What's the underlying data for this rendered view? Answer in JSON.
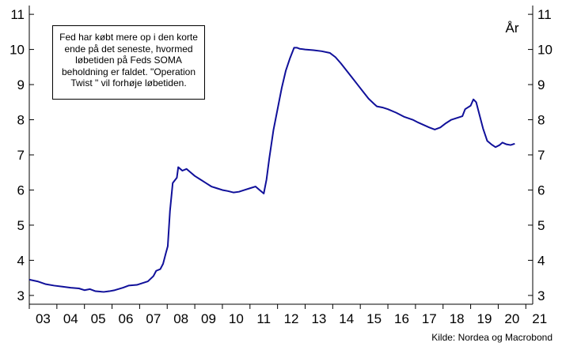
{
  "chart_data": {
    "type": "line",
    "title": "",
    "ylabel": "År",
    "xlabel": "",
    "x_tick_labels": [
      "03",
      "04",
      "05",
      "06",
      "07",
      "08",
      "09",
      "10",
      "11",
      "12",
      "13",
      "14",
      "15",
      "16",
      "17",
      "18",
      "19",
      "20",
      "21"
    ],
    "y_ticks": [
      3,
      4,
      5,
      6,
      7,
      8,
      9,
      10,
      11
    ],
    "ylim": [
      2.75,
      11.25
    ],
    "xlim": [
      2003.0,
      2021.25
    ],
    "grid": false,
    "legend": "none",
    "annotation": "Fed har købt mere op i den korte ende på det seneste, hvormed løbetiden på Feds SOMA beholdning er faldet. \"Operation Twist \" vil forhøje løbetiden.",
    "source": "Kilde: Nordea og Macrobond",
    "line_color": "#10109a",
    "series": [
      {
        "x": [
          2003.0,
          2003.3,
          2003.6,
          2003.9,
          2004.2,
          2004.5,
          2004.8,
          2005.0,
          2005.2,
          2005.4,
          2005.7,
          2005.9,
          2006.1,
          2006.4,
          2006.6,
          2006.9,
          2007.1,
          2007.3,
          2007.5,
          2007.6,
          2007.75,
          2007.85,
          2007.95,
          2008.02,
          2008.1,
          2008.2,
          2008.35,
          2008.4,
          2008.55,
          2008.7,
          2008.85,
          2009.0,
          2009.2,
          2009.4,
          2009.6,
          2009.8,
          2010.0,
          2010.2,
          2010.4,
          2010.6,
          2010.8,
          2011.0,
          2011.2,
          2011.35,
          2011.5,
          2011.6,
          2011.7,
          2011.85,
          2012.0,
          2012.15,
          2012.3,
          2012.45,
          2012.6,
          2012.7,
          2012.8,
          2013.0,
          2013.3,
          2013.6,
          2013.9,
          2014.1,
          2014.3,
          2014.5,
          2014.7,
          2014.9,
          2015.1,
          2015.3,
          2015.5,
          2015.6,
          2015.8,
          2016.0,
          2016.3,
          2016.6,
          2016.9,
          2017.1,
          2017.3,
          2017.5,
          2017.7,
          2017.9,
          2018.1,
          2018.3,
          2018.5,
          2018.7,
          2018.8,
          2018.9,
          2019.0,
          2019.1,
          2019.2,
          2019.3,
          2019.45,
          2019.6,
          2019.75,
          2019.9,
          2020.05,
          2020.15,
          2020.3,
          2020.45,
          2020.6
        ],
        "y": [
          3.45,
          3.4,
          3.32,
          3.28,
          3.25,
          3.22,
          3.2,
          3.15,
          3.18,
          3.12,
          3.1,
          3.12,
          3.15,
          3.22,
          3.28,
          3.3,
          3.35,
          3.4,
          3.55,
          3.7,
          3.75,
          3.9,
          4.2,
          4.4,
          5.4,
          6.2,
          6.35,
          6.65,
          6.55,
          6.6,
          6.5,
          6.4,
          6.3,
          6.2,
          6.1,
          6.05,
          6.0,
          5.97,
          5.93,
          5.95,
          6.0,
          6.05,
          6.1,
          6.0,
          5.9,
          6.3,
          6.9,
          7.7,
          8.3,
          8.9,
          9.4,
          9.75,
          10.05,
          10.05,
          10.02,
          10.0,
          9.98,
          9.95,
          9.9,
          9.78,
          9.6,
          9.4,
          9.2,
          9.0,
          8.8,
          8.6,
          8.45,
          8.38,
          8.35,
          8.3,
          8.2,
          8.08,
          8.0,
          7.92,
          7.85,
          7.78,
          7.72,
          7.78,
          7.9,
          8.0,
          8.05,
          8.1,
          8.3,
          8.35,
          8.4,
          8.58,
          8.5,
          8.2,
          7.75,
          7.4,
          7.3,
          7.22,
          7.28,
          7.35,
          7.3,
          7.28,
          7.32
        ]
      }
    ]
  }
}
